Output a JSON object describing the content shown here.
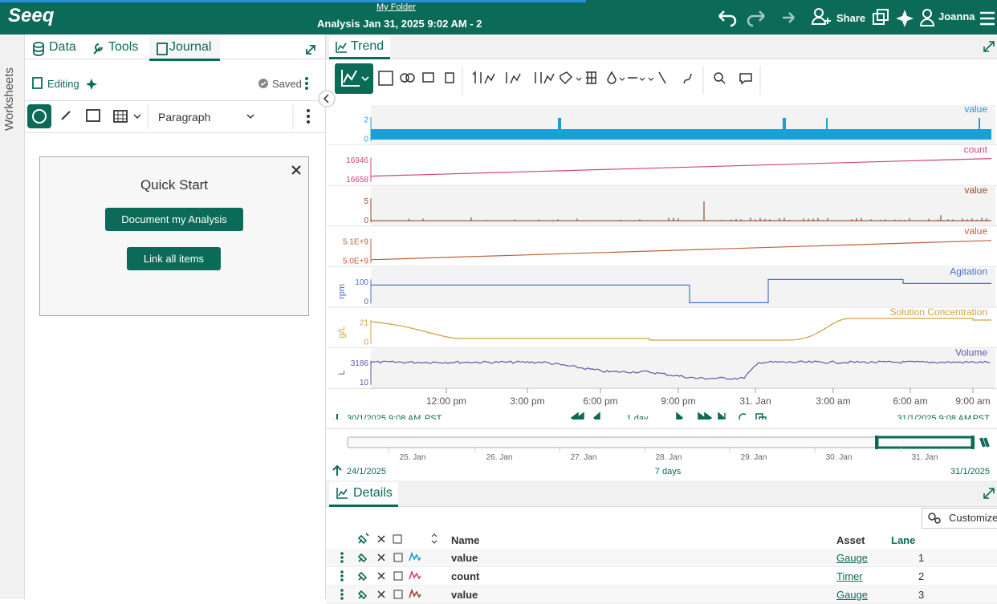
{
  "header": {
    "logo": "Seeq",
    "folder": "My Folder",
    "title": "Analysis Jan 31, 2025 9:02 AM - 2",
    "share": "Share",
    "user": "Joanna"
  },
  "sidebar": {
    "label": "Worksheets"
  },
  "journal": {
    "tabs": [
      "Data",
      "Tools",
      "Journal"
    ],
    "mode": "Editing",
    "status": "Saved",
    "format": "Paragraph",
    "quick_start": {
      "title": "Quick Start",
      "buttons": [
        "Document my Analysis",
        "Link all items"
      ]
    }
  },
  "trend": {
    "tab": "Trend",
    "lanes": [
      {
        "label": "value",
        "color": "#1a9fd6",
        "ticks": [
          "2",
          "0"
        ]
      },
      {
        "label": "count",
        "color": "#d6417f",
        "ticks": [
          "16946",
          "16658"
        ]
      },
      {
        "label": "value",
        "color": "#9a4a2a",
        "ticks": [
          "5",
          "0"
        ]
      },
      {
        "label": "value",
        "color": "#c0603a",
        "ticks": [
          "5.1E+9",
          "5.0E+9"
        ]
      },
      {
        "label": "Agitation",
        "unit": "rpm",
        "color": "#4a73c4",
        "ticks": [
          "100",
          "0"
        ]
      },
      {
        "label": "Solution Concentration",
        "unit": "g/L",
        "color": "#d4a040",
        "ticks": [
          "21",
          "0"
        ]
      },
      {
        "label": "Volume",
        "unit": "L",
        "color": "#5a5aa8",
        "ticks": [
          "3186",
          "10"
        ]
      }
    ],
    "x_labels": [
      "12:00 pm",
      "3:00 pm",
      "6:00 pm",
      "9:00 pm",
      "31. Jan",
      "3:00 am",
      "6:00 am",
      "9:00 am"
    ],
    "start": "30/1/2025 9:08 AM",
    "start_tz": "PST",
    "duration": "1 day",
    "end": "31/1/2025 9:08 AM",
    "end_tz": "PST",
    "overview": {
      "labels": [
        "25. Jan",
        "26. Jan",
        "27. Jan",
        "28. Jan",
        "29. Jan",
        "30. Jan",
        "31. Jan"
      ],
      "start": "24/1/2025",
      "duration": "7 days",
      "end": "31/1/2025"
    }
  },
  "details": {
    "tab": "Details",
    "customize": "Customize",
    "columns": [
      "Name",
      "Asset",
      "Lane"
    ],
    "rows": [
      {
        "name": "value",
        "asset": "Gauge",
        "lane": 1,
        "color": "#1a9fd6"
      },
      {
        "name": "count",
        "asset": "Timer",
        "lane": 2,
        "color": "#d6417f"
      },
      {
        "name": "value",
        "asset": "Gauge",
        "lane": 3,
        "color": "#9a4a2a"
      }
    ]
  }
}
